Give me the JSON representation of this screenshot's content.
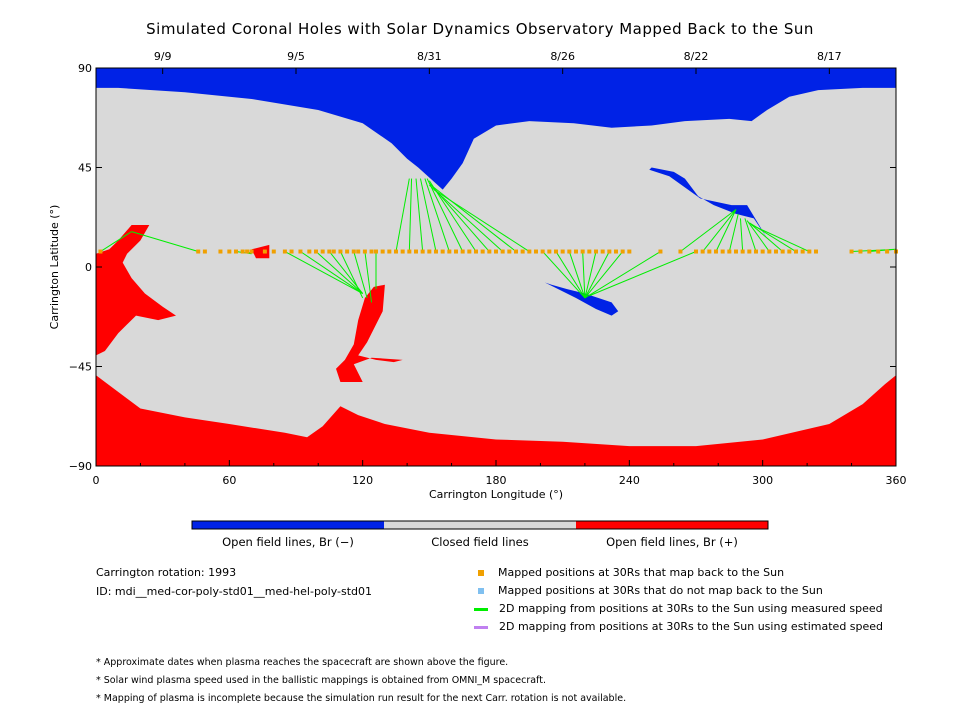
{
  "title": "Simulated Coronal Holes with Solar Dynamics Observatory Mapped Back to the Sun",
  "colors": {
    "open_negative": "#0022e6",
    "closed": "#d9d9d9",
    "open_positive": "#ff0000",
    "mapped_back": "#f0a000",
    "not_mapped": "#80c0f0",
    "measured_line": "#00ee00",
    "estimated_line": "#c080f0"
  },
  "chart_data": {
    "type": "map",
    "title": "Simulated Coronal Holes with Solar Dynamics Observatory Mapped Back to the Sun",
    "xlabel": "Carrington Longitude (°)",
    "ylabel": "Carrington Latitude (°)",
    "xlim": [
      0,
      360
    ],
    "ylim": [
      -90,
      90
    ],
    "xticks": [
      0,
      60,
      120,
      180,
      240,
      300,
      360
    ],
    "yticks": [
      -90,
      -45,
      0,
      45,
      90
    ],
    "top_axis": [
      {
        "label": "9/9",
        "lon": 30
      },
      {
        "label": "9/5",
        "lon": 90
      },
      {
        "label": "8/31",
        "lon": 150
      },
      {
        "label": "8/26",
        "lon": 210
      },
      {
        "label": "8/22",
        "lon": 270
      },
      {
        "label": "8/17",
        "lon": 330
      }
    ],
    "regions": {
      "north_polar_hole": [
        [
          0,
          81
        ],
        [
          10,
          81
        ],
        [
          40,
          79
        ],
        [
          70,
          76
        ],
        [
          100,
          71
        ],
        [
          120,
          65
        ],
        [
          133,
          56
        ],
        [
          140,
          49
        ],
        [
          145,
          45
        ],
        [
          156,
          35
        ],
        [
          160,
          40
        ],
        [
          165,
          47
        ],
        [
          170,
          58
        ],
        [
          180,
          64
        ],
        [
          195,
          66
        ],
        [
          215,
          65
        ],
        [
          232,
          63
        ],
        [
          250,
          64
        ],
        [
          265,
          66
        ],
        [
          285,
          67
        ],
        [
          295,
          66
        ],
        [
          302,
          71
        ],
        [
          312,
          77
        ],
        [
          325,
          80
        ],
        [
          345,
          81
        ],
        [
          360,
          81
        ],
        [
          360,
          90
        ],
        [
          0,
          90
        ]
      ],
      "north_lobe": [
        [
          249,
          44
        ],
        [
          258,
          41
        ],
        [
          272,
          31
        ],
        [
          286,
          28
        ],
        [
          293,
          28
        ],
        [
          302,
          13
        ],
        [
          296,
          22
        ],
        [
          288,
          24
        ],
        [
          278,
          28
        ],
        [
          271,
          32
        ],
        [
          265,
          40
        ],
        [
          260,
          43
        ],
        [
          250,
          45
        ]
      ],
      "equatorial_hole_neg": [
        [
          202,
          -7
        ],
        [
          208,
          -10
        ],
        [
          216,
          -14
        ],
        [
          225,
          -19
        ],
        [
          232,
          -22
        ],
        [
          235,
          -20
        ],
        [
          232,
          -16
        ],
        [
          220,
          -12
        ],
        [
          212,
          -10
        ],
        [
          205,
          -8
        ]
      ],
      "south_polar_hole": [
        [
          0,
          -49
        ],
        [
          20,
          -64
        ],
        [
          40,
          -68
        ],
        [
          60,
          -71
        ],
        [
          85,
          -75
        ],
        [
          95,
          -77
        ],
        [
          102,
          -72
        ],
        [
          110,
          -63
        ],
        [
          118,
          -67
        ],
        [
          130,
          -71
        ],
        [
          150,
          -75
        ],
        [
          180,
          -78
        ],
        [
          210,
          -79
        ],
        [
          240,
          -81
        ],
        [
          270,
          -81
        ],
        [
          300,
          -78
        ],
        [
          330,
          -71
        ],
        [
          345,
          -62
        ],
        [
          355,
          -53
        ],
        [
          360,
          -49
        ],
        [
          360,
          -90
        ],
        [
          0,
          -90
        ]
      ],
      "western_pos_hole": [
        [
          0,
          6
        ],
        [
          6,
          8
        ],
        [
          10,
          12
        ],
        [
          16,
          19
        ],
        [
          24,
          19
        ],
        [
          20,
          12
        ],
        [
          14,
          6
        ],
        [
          12,
          2
        ],
        [
          16,
          -5
        ],
        [
          22,
          -12
        ],
        [
          30,
          -18
        ],
        [
          36,
          -22
        ],
        [
          28,
          -24
        ],
        [
          18,
          -22
        ],
        [
          10,
          -30
        ],
        [
          4,
          -38
        ],
        [
          0,
          -40
        ]
      ],
      "central_pos_hole": [
        [
          108,
          -46
        ],
        [
          112,
          -42
        ],
        [
          116,
          -35
        ],
        [
          118,
          -24
        ],
        [
          121,
          -14
        ],
        [
          125,
          -9
        ],
        [
          130,
          -8
        ],
        [
          129,
          -20
        ],
        [
          122,
          -34
        ],
        [
          118,
          -40
        ],
        [
          126,
          -42
        ],
        [
          134,
          -43
        ],
        [
          138,
          -42
        ],
        [
          124,
          -41
        ],
        [
          116,
          -44
        ],
        [
          120,
          -52
        ],
        [
          110,
          -52
        ]
      ],
      "small_pos": [
        [
          70,
          8
        ],
        [
          78,
          10
        ],
        [
          78,
          4
        ],
        [
          72,
          4
        ]
      ]
    },
    "mapped_positions_lon": [
      2,
      46,
      49,
      56,
      60,
      63,
      66,
      68,
      70,
      76,
      80,
      85,
      88,
      92,
      96,
      99,
      102,
      105,
      107,
      110,
      113,
      116,
      118,
      121,
      124,
      126,
      129,
      132,
      135,
      138,
      141,
      144,
      147,
      150,
      153,
      156,
      159,
      162,
      165,
      168,
      171,
      174,
      177,
      180,
      183,
      186,
      189,
      192,
      195,
      198,
      201,
      204,
      207,
      210,
      213,
      216,
      219,
      222,
      225,
      228,
      231,
      234,
      237,
      240,
      254,
      263,
      270,
      273,
      276,
      279,
      282,
      285,
      288,
      291,
      294,
      297,
      300,
      303,
      306,
      309,
      312,
      315,
      318,
      321,
      324,
      340,
      344,
      348,
      352,
      356,
      360
    ],
    "mapped_positions_lat": 7,
    "mapping_lines_measured": [
      [
        [
          2,
          7
        ],
        [
          16,
          16
        ]
      ],
      [
        [
          46,
          7
        ],
        [
          16,
          16
        ]
      ],
      [
        [
          63,
          7
        ],
        [
          70,
          6
        ]
      ],
      [
        [
          68,
          7
        ],
        [
          70,
          6
        ]
      ],
      [
        [
          85,
          7
        ],
        [
          120,
          -12
        ]
      ],
      [
        [
          92,
          7
        ],
        [
          120,
          -12
        ]
      ],
      [
        [
          99,
          7
        ],
        [
          120,
          -12
        ]
      ],
      [
        [
          105,
          7
        ],
        [
          120,
          -12
        ]
      ],
      [
        [
          110,
          7
        ],
        [
          120,
          -14
        ]
      ],
      [
        [
          116,
          7
        ],
        [
          122,
          -14
        ]
      ],
      [
        [
          121,
          7
        ],
        [
          124,
          -16
        ]
      ],
      [
        [
          126,
          7
        ],
        [
          126,
          -10
        ]
      ],
      [
        [
          135,
          7
        ],
        [
          141,
          40
        ]
      ],
      [
        [
          141,
          7
        ],
        [
          142,
          40
        ]
      ],
      [
        [
          147,
          7
        ],
        [
          144,
          40
        ]
      ],
      [
        [
          153,
          7
        ],
        [
          146,
          40
        ]
      ],
      [
        [
          159,
          7
        ],
        [
          148,
          40
        ]
      ],
      [
        [
          165,
          7
        ],
        [
          149,
          40
        ]
      ],
      [
        [
          171,
          7
        ],
        [
          150,
          39
        ]
      ],
      [
        [
          177,
          7
        ],
        [
          150,
          38
        ]
      ],
      [
        [
          183,
          7
        ],
        [
          150,
          37
        ]
      ],
      [
        [
          189,
          7
        ],
        [
          152,
          36
        ]
      ],
      [
        [
          195,
          7
        ],
        [
          152,
          35
        ]
      ],
      [
        [
          201,
          7
        ],
        [
          220,
          -14
        ]
      ],
      [
        [
          207,
          7
        ],
        [
          220,
          -14
        ]
      ],
      [
        [
          213,
          7
        ],
        [
          220,
          -14
        ]
      ],
      [
        [
          219,
          7
        ],
        [
          220,
          -14
        ]
      ],
      [
        [
          225,
          7
        ],
        [
          220,
          -14
        ]
      ],
      [
        [
          231,
          7
        ],
        [
          220,
          -14
        ]
      ],
      [
        [
          237,
          7
        ],
        [
          220,
          -14
        ]
      ],
      [
        [
          254,
          7
        ],
        [
          220,
          -14
        ]
      ],
      [
        [
          270,
          7
        ],
        [
          222,
          -13
        ]
      ],
      [
        [
          263,
          7
        ],
        [
          288,
          26
        ]
      ],
      [
        [
          273,
          7
        ],
        [
          288,
          26
        ]
      ],
      [
        [
          279,
          7
        ],
        [
          288,
          26
        ]
      ],
      [
        [
          285,
          7
        ],
        [
          289,
          24
        ]
      ],
      [
        [
          291,
          7
        ],
        [
          290,
          22
        ]
      ],
      [
        [
          297,
          7
        ],
        [
          292,
          22
        ]
      ],
      [
        [
          303,
          7
        ],
        [
          293,
          21
        ]
      ],
      [
        [
          309,
          7
        ],
        [
          294,
          20
        ]
      ],
      [
        [
          315,
          7
        ],
        [
          294,
          20
        ]
      ],
      [
        [
          321,
          7
        ],
        [
          295,
          19
        ]
      ],
      [
        [
          340,
          7
        ],
        [
          360,
          8
        ]
      ],
      [
        [
          348,
          7
        ],
        [
          360,
          8
        ]
      ]
    ],
    "colorbar": [
      "Open field lines, Br (−)",
      "Closed field lines",
      "Open field lines, Br (+)"
    ]
  },
  "info": {
    "rotation": "Carrington rotation: 1993",
    "id": "ID: mdi__med-cor-poly-std01__med-hel-poly-std01"
  },
  "legend": [
    {
      "label": "Mapped positions at 30Rs that map back to the Sun",
      "kind": "square",
      "color": "#f0a000"
    },
    {
      "label": "Mapped positions at 30Rs that do not map back to the Sun",
      "kind": "square",
      "color": "#80c0f0"
    },
    {
      "label": "2D mapping from positions at 30Rs to the Sun using measured speed",
      "kind": "line",
      "color": "#00ee00"
    },
    {
      "label": "2D mapping from positions at 30Rs to the Sun using estimated speed",
      "kind": "line",
      "color": "#c080f0"
    }
  ],
  "notes": [
    "* Approximate dates when plasma reaches the spacecraft are shown above the figure.",
    "* Solar wind plasma speed used in the ballistic mappings is obtained from OMNI_M spacecraft.",
    "* Mapping of plasma is incomplete because the simulation run result for the next Carr. rotation is not available."
  ]
}
